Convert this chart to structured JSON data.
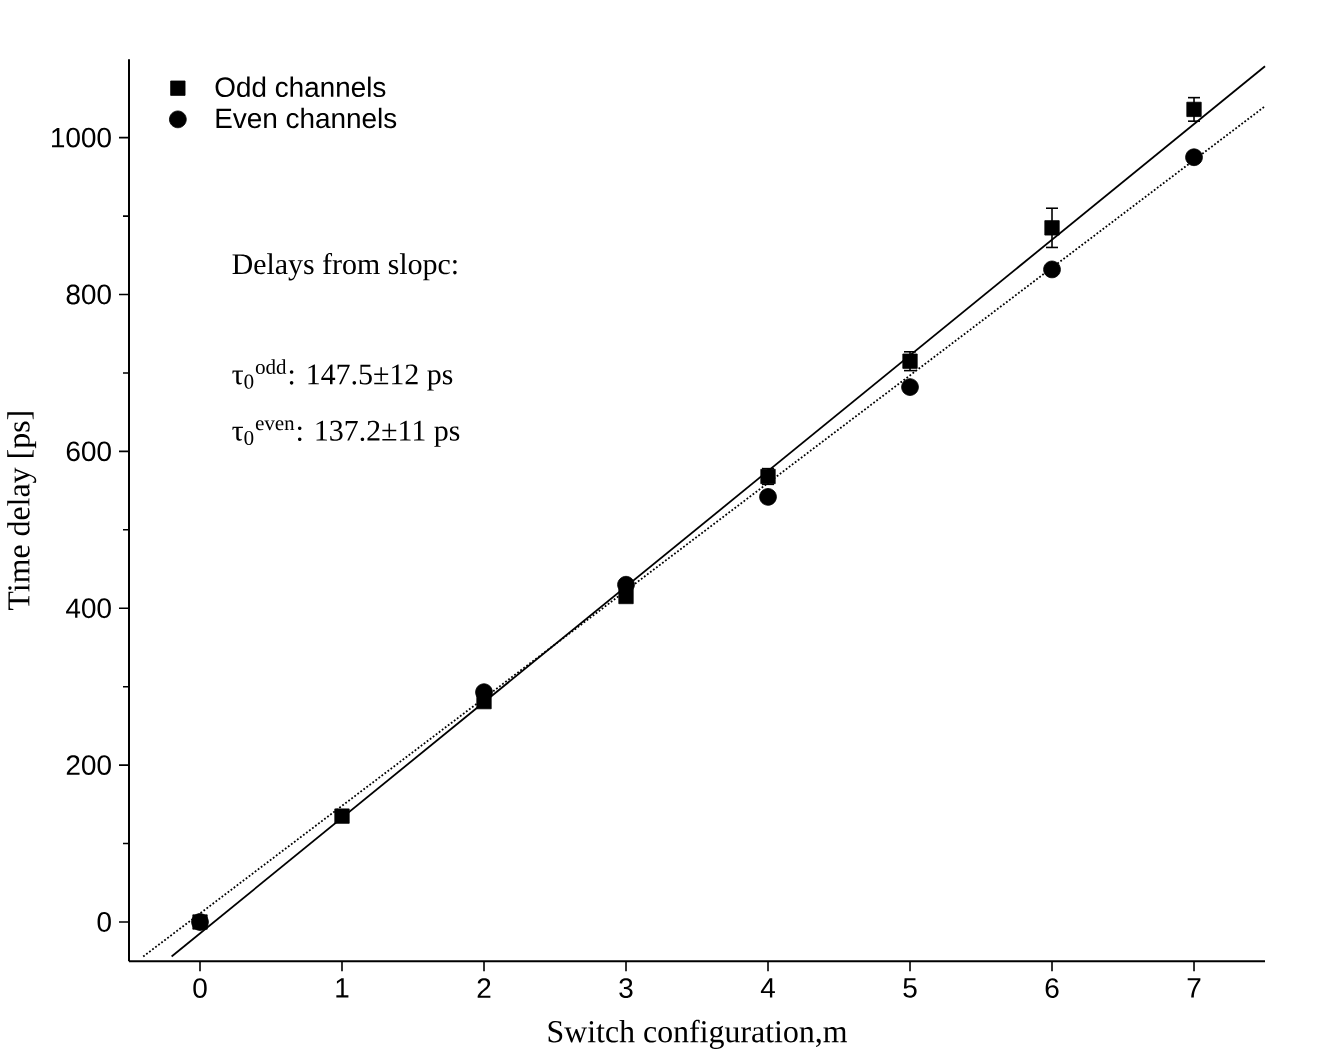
{
  "chart_data": {
    "type": "scatter",
    "xlabel": "Switch configuration,m",
    "ylabel": "Time delay [ps]",
    "xlim": [
      -0.5,
      7.5
    ],
    "ylim": [
      -50,
      1100
    ],
    "xticks": [
      0,
      1,
      2,
      3,
      4,
      5,
      6,
      7
    ],
    "yticks": [
      0,
      200,
      400,
      600,
      800,
      1000
    ],
    "legend": "top left",
    "annotations": [
      "Delays from slopc:",
      "τ$_{0}$$^{odd}$: 147.5±12 ps",
      "τ$_{0}$$^{even}$: 137.2±11 ps"
    ],
    "series": [
      {
        "name": "Odd channels",
        "marker": "square",
        "color": "#000000",
        "x": [
          0,
          1,
          2,
          3,
          4,
          5,
          6,
          7
        ],
        "values": [
          0,
          135,
          281,
          415,
          568,
          715,
          885,
          1036
        ],
        "errors": [
          null,
          null,
          null,
          null,
          10,
          12,
          25,
          15
        ]
      },
      {
        "name": "Even channels",
        "marker": "circle",
        "color": "#000000",
        "x": [
          0,
          1,
          2,
          3,
          4,
          5,
          6,
          7
        ],
        "values": [
          0,
          null,
          293,
          430,
          542,
          682,
          832,
          975
        ]
      },
      {
        "type": "line",
        "marker": "none",
        "line_style": "solid",
        "color": "#000000",
        "x": [
          -0.2,
          7.5
        ],
        "values": [
          -44,
          1091
        ]
      },
      {
        "type": "line",
        "marker": "none",
        "line_style": "dotted",
        "color": "#000000",
        "x": [
          -0.4,
          7.5
        ],
        "values": [
          -44,
          1040
        ]
      }
    ]
  }
}
